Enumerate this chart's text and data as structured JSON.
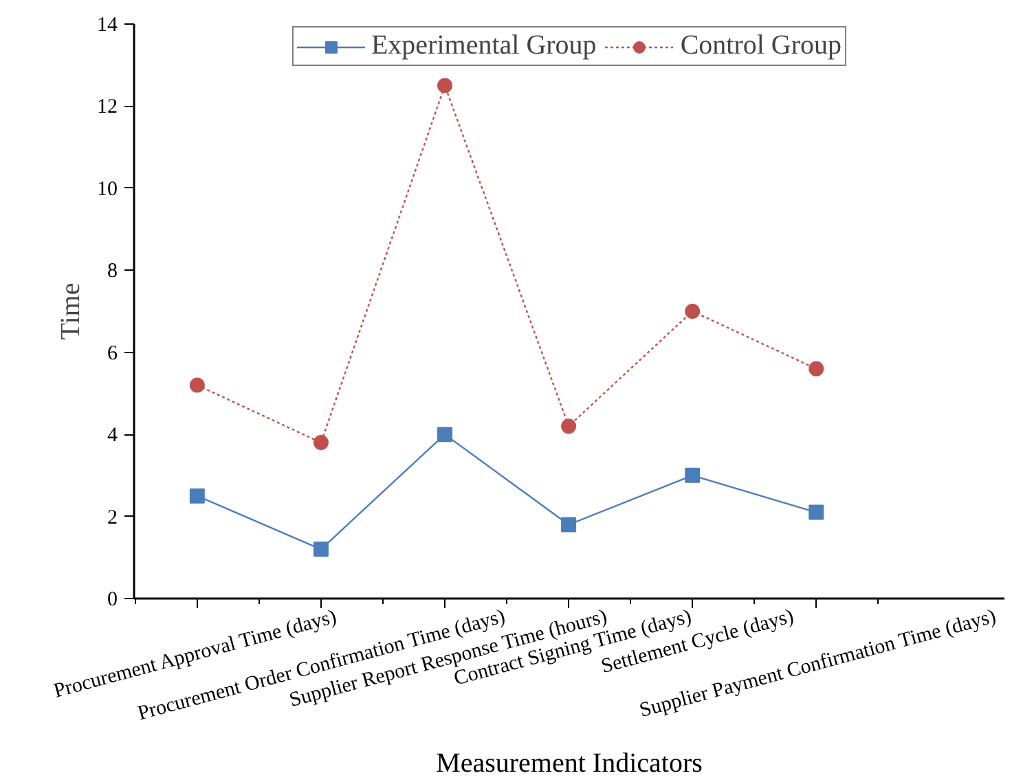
{
  "chart_data": {
    "type": "line",
    "xlabel": "Measurement Indicators",
    "ylabel": "Time",
    "categories": [
      "Procurement Approval Time (days)",
      "Procurement Order Confirmation Time (days)",
      "Supplier Report Response Time (hours)",
      "Contract Signing Time (days)",
      "Settlement Cycle (days)",
      "Supplier Payment Confirmation Time (days)"
    ],
    "series": [
      {
        "name": "Experimental Group",
        "color": "#4a7ebb",
        "marker": "square",
        "line_style": "solid",
        "values": [
          2.5,
          1.2,
          4.0,
          1.8,
          3.0,
          2.1
        ]
      },
      {
        "name": "Control Group",
        "color": "#c0504d",
        "marker": "circle",
        "line_style": "dotted",
        "values": [
          5.2,
          3.8,
          12.5,
          4.2,
          7.0,
          5.6
        ]
      }
    ],
    "ylim": [
      0,
      14
    ],
    "yticks": [
      0,
      2,
      4,
      6,
      8,
      10,
      12,
      14
    ],
    "grid": false,
    "legend": "top"
  }
}
